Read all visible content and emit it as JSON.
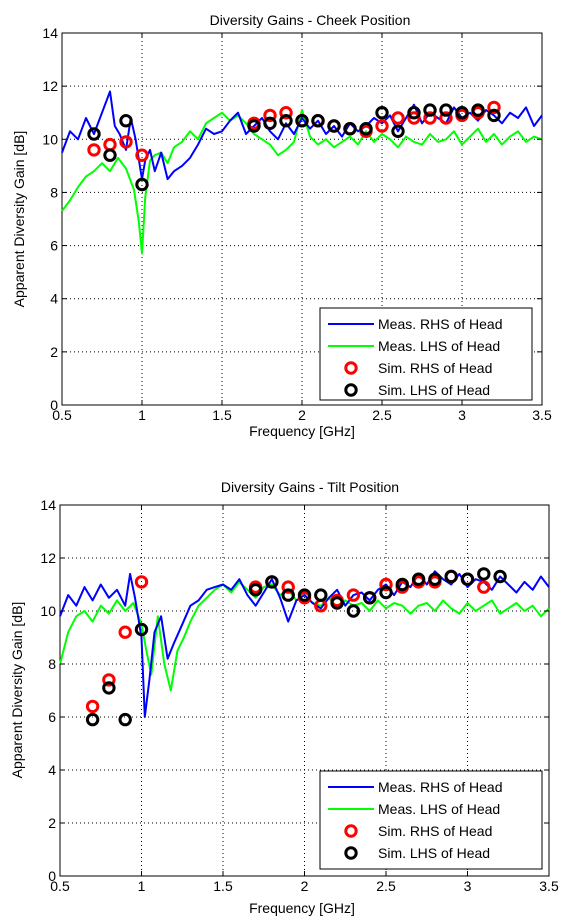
{
  "chart_data": [
    {
      "type": "line",
      "title": "Diversity Gains - Cheek Position",
      "xlabel": "Frequency [GHz]",
      "ylabel": "Apparent Diversity Gain [dB]",
      "xlim": [
        0.5,
        3.5
      ],
      "ylim": [
        0,
        14
      ],
      "xticks": [
        "0.5",
        "1",
        "1.5",
        "2",
        "2.5",
        "3",
        "3.5"
      ],
      "yticks": [
        "0",
        "2",
        "4",
        "6",
        "8",
        "10",
        "12",
        "14"
      ],
      "grid": true,
      "legend_position": "bottom-right",
      "colors": {
        "meas_rhs": "#0000ff",
        "meas_lhs": "#00ff00",
        "sim_rhs": "#ff0000",
        "sim_lhs": "#000000"
      },
      "series": [
        {
          "name": "Meas. RHS of Head",
          "kind": "line",
          "x": [
            0.5,
            0.55,
            0.6,
            0.65,
            0.7,
            0.75,
            0.8,
            0.83,
            0.86,
            0.9,
            0.93,
            0.96,
            1.0,
            1.02,
            1.05,
            1.08,
            1.12,
            1.16,
            1.2,
            1.25,
            1.3,
            1.35,
            1.4,
            1.45,
            1.5,
            1.55,
            1.6,
            1.65,
            1.7,
            1.75,
            1.8,
            1.85,
            1.9,
            1.95,
            2.0,
            2.05,
            2.1,
            2.15,
            2.2,
            2.25,
            2.3,
            2.35,
            2.4,
            2.45,
            2.5,
            2.55,
            2.6,
            2.65,
            2.7,
            2.75,
            2.8,
            2.85,
            2.9,
            2.95,
            3.0,
            3.05,
            3.1,
            3.15,
            3.2,
            3.25,
            3.3,
            3.35,
            3.4,
            3.45,
            3.5
          ],
          "y": [
            9.5,
            10.3,
            10.0,
            10.8,
            10.2,
            11.0,
            11.8,
            10.5,
            10.2,
            9.6,
            10.8,
            10.0,
            8.5,
            9.2,
            9.6,
            8.8,
            9.5,
            8.5,
            8.8,
            9.0,
            9.3,
            9.8,
            10.4,
            10.2,
            10.3,
            10.7,
            11.0,
            10.2,
            10.5,
            10.8,
            10.3,
            10.0,
            10.6,
            10.2,
            10.8,
            10.4,
            10.7,
            10.2,
            10.5,
            10.1,
            10.6,
            10.3,
            10.5,
            10.8,
            10.6,
            10.9,
            10.3,
            10.8,
            11.3,
            10.6,
            11.0,
            10.8,
            10.6,
            11.2,
            10.8,
            11.0,
            10.7,
            11.1,
            10.9,
            10.6,
            11.0,
            10.8,
            11.2,
            10.5,
            10.9
          ]
        },
        {
          "name": "Meas. LHS of Head",
          "kind": "line",
          "x": [
            0.5,
            0.55,
            0.6,
            0.65,
            0.7,
            0.75,
            0.8,
            0.85,
            0.9,
            0.95,
            0.98,
            1.0,
            1.02,
            1.05,
            1.08,
            1.12,
            1.16,
            1.2,
            1.25,
            1.3,
            1.35,
            1.4,
            1.45,
            1.5,
            1.55,
            1.6,
            1.65,
            1.7,
            1.75,
            1.8,
            1.85,
            1.9,
            1.95,
            2.0,
            2.05,
            2.1,
            2.15,
            2.2,
            2.25,
            2.3,
            2.35,
            2.4,
            2.45,
            2.5,
            2.55,
            2.6,
            2.65,
            2.7,
            2.75,
            2.8,
            2.85,
            2.9,
            2.95,
            3.0,
            3.05,
            3.1,
            3.15,
            3.2,
            3.25,
            3.3,
            3.35,
            3.4,
            3.45,
            3.5
          ],
          "y": [
            7.3,
            7.7,
            8.2,
            8.6,
            8.8,
            9.1,
            8.8,
            9.3,
            8.9,
            8.1,
            6.9,
            5.7,
            7.8,
            9.2,
            9.4,
            9.5,
            9.1,
            9.7,
            9.9,
            10.3,
            10.0,
            10.6,
            10.8,
            11.0,
            10.7,
            10.9,
            10.6,
            10.2,
            10.0,
            9.8,
            9.4,
            9.6,
            9.9,
            11.1,
            10.1,
            9.8,
            10.0,
            9.7,
            9.9,
            10.1,
            9.8,
            10.3,
            9.9,
            10.2,
            10.0,
            9.7,
            10.1,
            9.9,
            9.8,
            10.2,
            9.9,
            10.0,
            10.3,
            9.8,
            10.1,
            10.4,
            9.9,
            10.2,
            9.8,
            10.1,
            10.3,
            9.9,
            10.1,
            10.0
          ]
        },
        {
          "name": "Sim. RHS of Head",
          "kind": "scatter",
          "x": [
            0.7,
            0.8,
            0.9,
            1.0,
            1.7,
            1.8,
            1.9,
            2.0,
            2.1,
            2.2,
            2.3,
            2.4,
            2.5,
            2.6,
            2.7,
            2.8,
            2.9,
            3.0,
            3.1,
            3.2
          ],
          "y": [
            9.6,
            9.8,
            9.9,
            9.4,
            10.6,
            10.9,
            11.0,
            10.7,
            10.7,
            10.5,
            10.4,
            10.3,
            10.5,
            10.8,
            10.8,
            10.8,
            10.8,
            10.9,
            11.0,
            11.2
          ]
        },
        {
          "name": "Sim. LHS of Head",
          "kind": "scatter",
          "x": [
            0.7,
            0.8,
            0.9,
            1.0,
            1.7,
            1.8,
            1.9,
            2.0,
            2.1,
            2.2,
            2.3,
            2.4,
            2.5,
            2.6,
            2.7,
            2.8,
            2.9,
            3.0,
            3.1,
            3.2
          ],
          "y": [
            10.2,
            9.4,
            10.7,
            8.3,
            10.5,
            10.6,
            10.7,
            10.7,
            10.7,
            10.5,
            10.4,
            10.4,
            11.0,
            10.3,
            11.0,
            11.1,
            11.1,
            11.0,
            11.1,
            10.9
          ]
        }
      ]
    },
    {
      "type": "line",
      "title": "Diversity Gains - Tilt Position",
      "xlabel": "Frequency [GHz]",
      "ylabel": "Apparent Diversity Gain [dB]",
      "xlim": [
        0.5,
        3.5
      ],
      "ylim": [
        0,
        14
      ],
      "xticks": [
        "0.5",
        "1",
        "1.5",
        "2",
        "2.5",
        "3",
        "3.5"
      ],
      "yticks": [
        "0",
        "2",
        "4",
        "6",
        "8",
        "10",
        "12",
        "14"
      ],
      "grid": true,
      "legend_position": "bottom-right",
      "colors": {
        "meas_rhs": "#0000ff",
        "meas_lhs": "#00ff00",
        "sim_rhs": "#ff0000",
        "sim_lhs": "#000000"
      },
      "series": [
        {
          "name": "Meas. RHS of Head",
          "kind": "line",
          "x": [
            0.5,
            0.55,
            0.6,
            0.65,
            0.7,
            0.75,
            0.8,
            0.85,
            0.9,
            0.93,
            0.96,
            1.0,
            1.02,
            1.05,
            1.08,
            1.12,
            1.16,
            1.2,
            1.25,
            1.3,
            1.35,
            1.4,
            1.45,
            1.5,
            1.55,
            1.6,
            1.65,
            1.7,
            1.75,
            1.8,
            1.85,
            1.9,
            1.95,
            2.0,
            2.05,
            2.1,
            2.15,
            2.2,
            2.25,
            2.3,
            2.35,
            2.4,
            2.45,
            2.5,
            2.55,
            2.6,
            2.65,
            2.7,
            2.75,
            2.8,
            2.85,
            2.9,
            2.95,
            3.0,
            3.05,
            3.1,
            3.15,
            3.2,
            3.25,
            3.3,
            3.35,
            3.4,
            3.45,
            3.5
          ],
          "y": [
            9.8,
            10.6,
            10.2,
            10.9,
            10.4,
            11.0,
            10.5,
            10.8,
            10.2,
            11.4,
            10.5,
            9.0,
            6.0,
            7.5,
            9.2,
            9.8,
            8.2,
            8.8,
            9.5,
            10.2,
            10.4,
            10.8,
            10.9,
            11.0,
            10.8,
            11.2,
            10.6,
            10.2,
            10.7,
            11.2,
            10.5,
            9.6,
            10.4,
            10.6,
            10.3,
            10.1,
            10.5,
            10.8,
            10.2,
            10.6,
            10.7,
            10.4,
            10.8,
            11.0,
            10.6,
            11.1,
            10.9,
            11.4,
            11.0,
            11.5,
            11.2,
            11.0,
            11.4,
            10.9,
            11.2,
            11.1,
            10.8,
            11.3,
            11.0,
            10.7,
            11.1,
            10.8,
            11.3,
            10.9
          ]
        },
        {
          "name": "Meas. LHS of Head",
          "kind": "line",
          "x": [
            0.5,
            0.55,
            0.6,
            0.65,
            0.7,
            0.75,
            0.8,
            0.85,
            0.9,
            0.95,
            1.0,
            1.03,
            1.06,
            1.1,
            1.14,
            1.18,
            1.22,
            1.26,
            1.3,
            1.35,
            1.4,
            1.45,
            1.5,
            1.55,
            1.6,
            1.65,
            1.7,
            1.75,
            1.8,
            1.85,
            1.9,
            1.95,
            2.0,
            2.05,
            2.1,
            2.15,
            2.2,
            2.25,
            2.3,
            2.35,
            2.4,
            2.45,
            2.5,
            2.55,
            2.6,
            2.65,
            2.7,
            2.75,
            2.8,
            2.85,
            2.9,
            2.95,
            3.0,
            3.05,
            3.1,
            3.15,
            3.2,
            3.25,
            3.3,
            3.35,
            3.4,
            3.45,
            3.5
          ],
          "y": [
            8.0,
            9.2,
            9.8,
            10.0,
            9.6,
            10.2,
            9.9,
            10.4,
            10.0,
            10.3,
            9.5,
            8.5,
            7.6,
            9.8,
            8.0,
            7.0,
            8.5,
            9.0,
            9.6,
            10.2,
            10.5,
            10.8,
            11.0,
            10.7,
            11.1,
            10.8,
            10.5,
            10.9,
            11.0,
            10.6,
            10.8,
            10.4,
            10.6,
            10.3,
            10.2,
            10.5,
            10.1,
            10.4,
            10.2,
            10.3,
            10.0,
            10.4,
            10.1,
            10.3,
            10.2,
            9.9,
            10.2,
            10.3,
            10.0,
            10.4,
            10.1,
            9.9,
            10.3,
            10.0,
            10.2,
            10.4,
            9.9,
            10.1,
            10.3,
            10.0,
            10.2,
            9.8,
            10.1
          ]
        },
        {
          "name": "Sim. RHS of Head",
          "kind": "scatter",
          "x": [
            0.7,
            0.8,
            0.9,
            1.0,
            1.7,
            1.8,
            1.9,
            2.0,
            2.1,
            2.2,
            2.3,
            2.4,
            2.5,
            2.6,
            2.7,
            2.8,
            2.9,
            3.0,
            3.1
          ],
          "y": [
            6.4,
            7.4,
            9.2,
            11.1,
            10.9,
            11.1,
            10.9,
            10.5,
            10.2,
            10.4,
            10.6,
            10.5,
            11.0,
            10.9,
            11.1,
            11.1,
            11.3,
            11.2,
            10.9
          ]
        },
        {
          "name": "Sim. LHS of Head",
          "kind": "scatter",
          "x": [
            0.7,
            0.8,
            0.9,
            1.0,
            1.7,
            1.8,
            1.9,
            2.0,
            2.1,
            2.2,
            2.3,
            2.4,
            2.5,
            2.6,
            2.7,
            2.8,
            2.9,
            3.0,
            3.1,
            3.2
          ],
          "y": [
            5.9,
            7.1,
            5.9,
            9.3,
            10.8,
            11.1,
            10.6,
            10.6,
            10.6,
            10.3,
            10.0,
            10.5,
            10.7,
            11.0,
            11.2,
            11.2,
            11.3,
            11.2,
            11.4,
            11.3
          ]
        }
      ]
    }
  ]
}
